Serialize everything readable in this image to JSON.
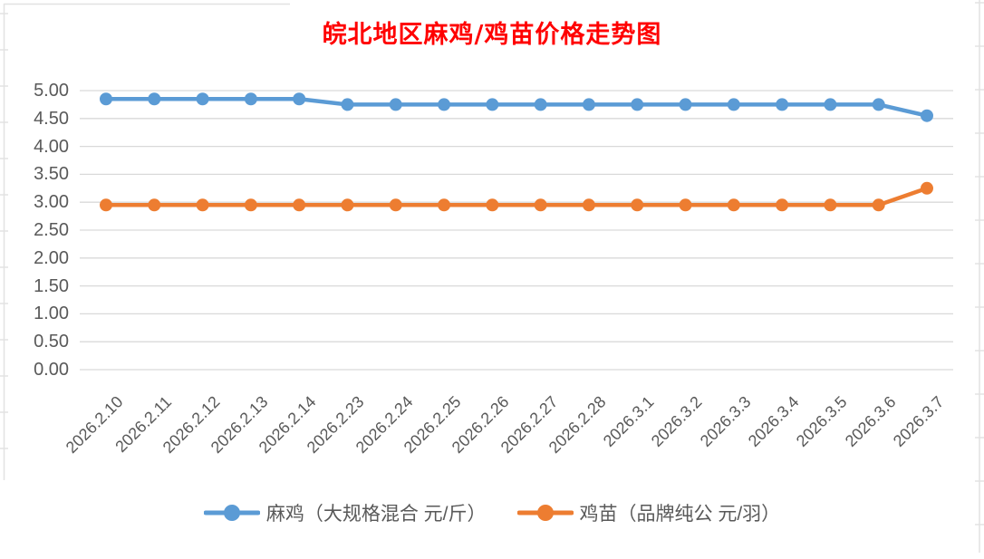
{
  "title": "皖北地区麻鸡/鸡苗价格走势图",
  "colors": {
    "title": "#FF0000",
    "axis_text": "#595959",
    "gridline": "#D9D9D9",
    "edge_line": "#E2E2E2",
    "series_blue": "#5B9BD5",
    "series_orange": "#ED7D31"
  },
  "chart_data": {
    "type": "line",
    "title": "皖北地区麻鸡/鸡苗价格走势图",
    "categories": [
      "2026.2.10",
      "2026.2.11",
      "2026.2.12",
      "2026.2.13",
      "2026.2.14",
      "2026.2.23",
      "2026.2.24",
      "2026.2.25",
      "2026.2.26",
      "2026.2.27",
      "2026.2.28",
      "2026.3.1",
      "2026.3.2",
      "2026.3.3",
      "2026.3.4",
      "2026.3.5",
      "2026.3.6",
      "2026.3.7"
    ],
    "series": [
      {
        "name": "麻鸡（大规格混合 元/斤）",
        "color": "#5B9BD5",
        "values": [
          4.85,
          4.85,
          4.85,
          4.85,
          4.85,
          4.75,
          4.75,
          4.75,
          4.75,
          4.75,
          4.75,
          4.75,
          4.75,
          4.75,
          4.75,
          4.75,
          4.75,
          4.55
        ]
      },
      {
        "name": "鸡苗（品牌纯公 元/羽）",
        "color": "#ED7D31",
        "values": [
          2.95,
          2.95,
          2.95,
          2.95,
          2.95,
          2.95,
          2.95,
          2.95,
          2.95,
          2.95,
          2.95,
          2.95,
          2.95,
          2.95,
          2.95,
          2.95,
          2.95,
          3.25
        ]
      }
    ],
    "y_axis": {
      "ticks": [
        "5.00",
        "4.50",
        "4.00",
        "3.50",
        "3.00",
        "2.50",
        "2.00",
        "1.50",
        "1.00",
        "0.50",
        "0.00"
      ],
      "min": 0,
      "max": 5,
      "step": 0.5
    },
    "grid": true,
    "legend_position": "bottom"
  }
}
